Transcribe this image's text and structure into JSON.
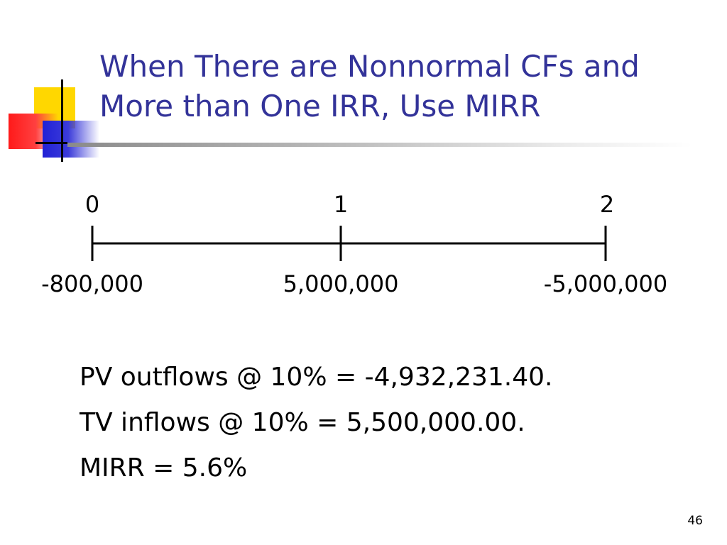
{
  "title": {
    "line1": "When There are Nonnormal CFs and",
    "line2": "More than One IRR, Use MIRR"
  },
  "timeline": {
    "periods": [
      "0",
      "1",
      "2"
    ],
    "cash_flows": [
      "-800,000",
      "5,000,000",
      "-5,000,000"
    ]
  },
  "body": {
    "lines": [
      "PV outflows @ 10% = -4,932,231.40.",
      "TV inflows @ 10% = 5,500,000.00.",
      "MIRR = 5.6%"
    ]
  },
  "page_number": "46",
  "colors": {
    "title": "#333399",
    "accent_yellow": "#ffd700",
    "accent_red": "#ff1a1a",
    "accent_blue": "#2121d6"
  }
}
